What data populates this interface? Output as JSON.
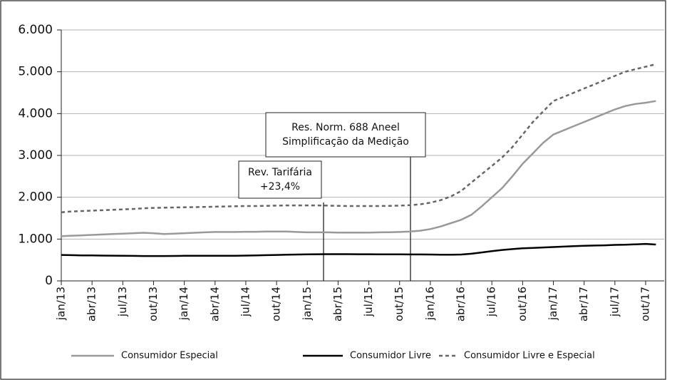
{
  "chart_data": {
    "type": "line",
    "categories": [
      "jan/13",
      null,
      null,
      "abr/13",
      null,
      null,
      "jul/13",
      null,
      null,
      "out/13",
      null,
      null,
      "jan/14",
      null,
      null,
      "abr/14",
      null,
      null,
      "jul/14",
      null,
      null,
      "out/14",
      null,
      null,
      "jan/15",
      null,
      null,
      "abr/15",
      null,
      null,
      "jul/15",
      null,
      null,
      "out/15",
      null,
      null,
      "jan/16",
      null,
      null,
      "abr/16",
      null,
      null,
      "jul/16",
      null,
      null,
      "out/16",
      null,
      null,
      "jan/17",
      null,
      null,
      "abr/17",
      null,
      null,
      "jul/17",
      null,
      null,
      "out/17",
      null
    ],
    "series": [
      {
        "name": "Consumidor Especial",
        "color": "#999999",
        "dash": false,
        "values": [
          1070,
          1080,
          1090,
          1100,
          1110,
          1120,
          1130,
          1140,
          1150,
          1140,
          1120,
          1130,
          1140,
          1150,
          1160,
          1170,
          1170,
          1170,
          1175,
          1175,
          1180,
          1180,
          1180,
          1170,
          1160,
          1160,
          1160,
          1155,
          1155,
          1155,
          1155,
          1160,
          1165,
          1170,
          1180,
          1200,
          1240,
          1300,
          1380,
          1460,
          1580,
          1780,
          2000,
          2220,
          2500,
          2800,
          3050,
          3300,
          3500,
          3600,
          3700,
          3800,
          3900,
          4000,
          4100,
          4180,
          4230,
          4260,
          4300
        ]
      },
      {
        "name": "Consumidor Livre",
        "color": "#000000",
        "dash": false,
        "values": [
          620,
          615,
          610,
          608,
          605,
          603,
          600,
          598,
          595,
          595,
          595,
          597,
          600,
          600,
          600,
          600,
          600,
          602,
          605,
          610,
          615,
          620,
          625,
          630,
          635,
          638,
          640,
          640,
          640,
          638,
          637,
          636,
          635,
          634,
          633,
          632,
          630,
          628,
          625,
          630,
          650,
          680,
          710,
          740,
          760,
          780,
          790,
          800,
          810,
          820,
          830,
          840,
          845,
          850,
          860,
          865,
          875,
          885,
          870
        ]
      },
      {
        "name": "Consumidor Livre e Especial",
        "color": "#666666",
        "dash": true,
        "values": [
          1640,
          1660,
          1670,
          1680,
          1690,
          1700,
          1710,
          1720,
          1735,
          1745,
          1750,
          1755,
          1760,
          1765,
          1770,
          1775,
          1780,
          1785,
          1790,
          1790,
          1795,
          1800,
          1805,
          1805,
          1805,
          1805,
          1800,
          1795,
          1790,
          1790,
          1790,
          1790,
          1795,
          1800,
          1810,
          1830,
          1870,
          1930,
          2020,
          2150,
          2350,
          2550,
          2750,
          2950,
          3200,
          3500,
          3800,
          4050,
          4300,
          4400,
          4500,
          4600,
          4700,
          4800,
          4900,
          5000,
          5060,
          5120,
          5180
        ]
      }
    ],
    "ylim": [
      0,
      6000
    ],
    "yticks": [
      0,
      {
        "value": 1000,
        "label": "1.000"
      },
      {
        "value": 2000,
        "label": "2.000"
      },
      {
        "value": 3000,
        "label": "3.000"
      },
      {
        "value": 4000,
        "label": "4.000"
      },
      {
        "value": 5000,
        "label": "5.000"
      },
      {
        "value": 6000,
        "label": "6.000"
      }
    ],
    "grid": true,
    "legend": "bottom",
    "annotations": [
      {
        "lines": [
          "Rev. Tarifária",
          "+23,4%"
        ]
      },
      {
        "lines": [
          "Res. Norm. 688 Aneel",
          "Simplificação da Medição"
        ]
      }
    ]
  }
}
